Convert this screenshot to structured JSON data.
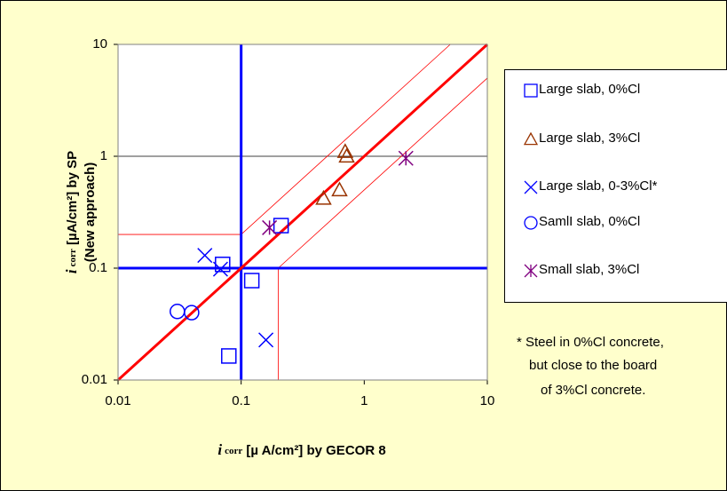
{
  "chart_data": {
    "type": "scatter",
    "x_label": [
      "i",
      "corr",
      " [µ A/cm²] by GECOR 8"
    ],
    "y_label": [
      "i",
      "corr",
      " [µA/cm²] by SP",
      "(New approach)"
    ],
    "xlim": [
      0.01,
      10
    ],
    "ylim": [
      0.01,
      10
    ],
    "xticks": [
      0.01,
      0.1,
      1,
      10
    ],
    "yticks": [
      0.01,
      0.1,
      1,
      10
    ],
    "log_scale": true,
    "grid": true,
    "legend_position": "right",
    "threshold": 0.1,
    "threshold_color": "#0000ff",
    "band_factor": 2,
    "line_color": "#ff0000",
    "series": [
      {
        "name": "Large slab, 0%Cl",
        "marker": "square",
        "color": "#0000ff",
        "x": [
          0.211,
          0.0707,
          0.122,
          0.0794
        ],
        "values": [
          0.24,
          0.108,
          0.0774,
          0.0164
        ]
      },
      {
        "name": "Large slab, 3%Cl",
        "marker": "triangle",
        "color": "#993300",
        "x": [
          0.7,
          0.72,
          0.467,
          0.63
        ],
        "values": [
          1.1,
          1.0,
          0.42,
          0.5
        ]
      },
      {
        "name": "Large slab, 0-3%Cl*",
        "marker": "x",
        "color": "#0000ff",
        "x": [
          0.0507,
          0.068,
          0.159
        ],
        "values": [
          0.13,
          0.098,
          0.0228
        ]
      },
      {
        "name": "SamlI slab, 0%Cl",
        "marker": "circle",
        "color": "#0000ff",
        "x": [
          0.0303,
          0.0396
        ],
        "values": [
          0.041,
          0.04
        ]
      },
      {
        "name": "Small slab, 3%Cl",
        "marker": "star",
        "color": "#800080",
        "x": [
          0.17,
          2.18
        ],
        "values": [
          0.23,
          0.96
        ]
      }
    ],
    "footnote": [
      "* Steel in 0%Cl concrete,",
      "but close to the board",
      "of 3%Cl concrete."
    ]
  }
}
